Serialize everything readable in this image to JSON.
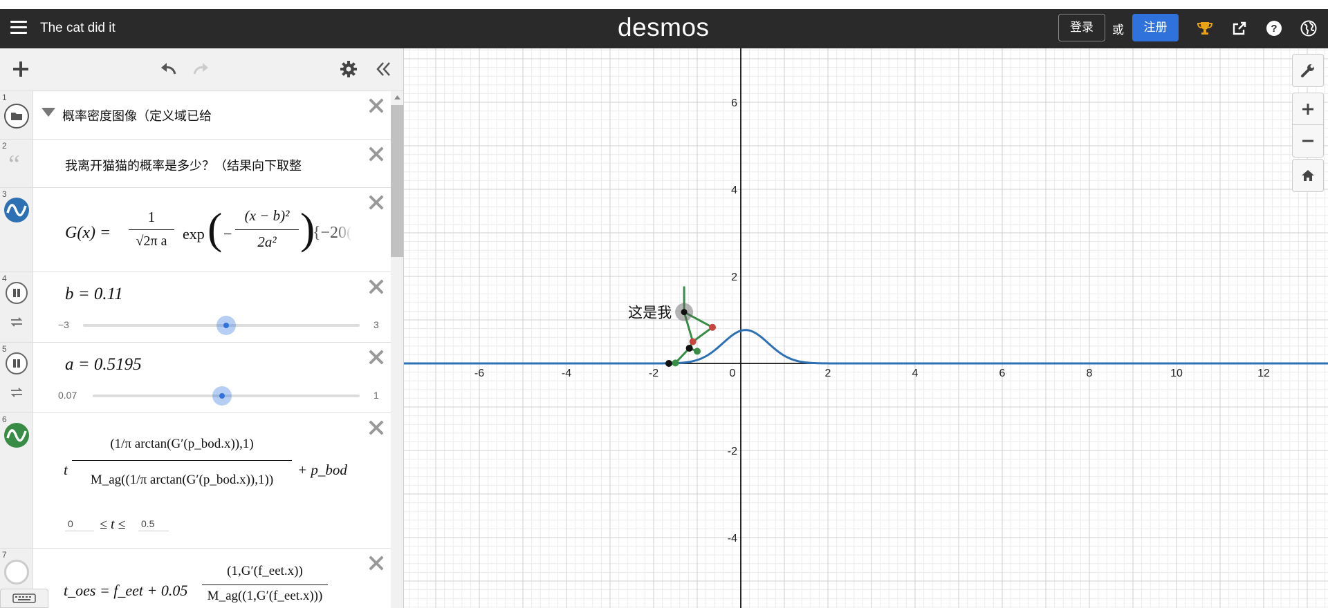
{
  "header": {
    "title": "The cat did it",
    "logo": "desmos",
    "login_label": "登录",
    "or_label": "或",
    "signup_label": "注册",
    "icons": [
      "menu-icon",
      "trophy-icon",
      "share-icon",
      "help-icon",
      "globe-icon"
    ]
  },
  "toolbar": {
    "icons": [
      "add-icon",
      "undo-icon",
      "redo-icon",
      "settings-icon",
      "collapse-icon"
    ]
  },
  "expressions": [
    {
      "num": "1",
      "type": "folder",
      "text": "概率密度图像（定义域已给"
    },
    {
      "num": "2",
      "type": "note",
      "text": "我离开猫猫的概率是多少？（结果向下取整"
    },
    {
      "num": "3",
      "type": "expression",
      "color": "#2d70b3",
      "lhs": "G(x) =",
      "frac_num": "1",
      "frac_den": "√2π a",
      "exp_label": "exp",
      "exp_num": "(x − b)²",
      "exp_den": "2a²",
      "tail": "{−20("
    },
    {
      "num": "4",
      "type": "slider",
      "lhs": "b = 0.11",
      "min": "−3",
      "max": "3",
      "value": 0.11,
      "range": [
        -3,
        3
      ]
    },
    {
      "num": "5",
      "type": "slider",
      "lhs": "a = 0.5195",
      "min": "0.07",
      "max": "1",
      "value": 0.5195,
      "range": [
        0.07,
        1
      ]
    },
    {
      "num": "6",
      "type": "parametric",
      "color": "#388c46",
      "t": "t",
      "num_expr": "(1/π arctan(G′(p_bod.x)),1)",
      "den_expr": "M_ag((1/π arctan(G′(p_bod.x)),1))",
      "plus": "+ p_bod",
      "lower": "0",
      "mid": "≤ t ≤",
      "upper": "0.5"
    },
    {
      "num": "7",
      "type": "expression",
      "lhs": "t_oes = f_eet + 0.05",
      "frac_num": "(1,G′(f_eet.x))",
      "frac_den": "M_ag((1,G′(f_eet.x)))"
    }
  ],
  "graph": {
    "x_ticks": [
      "-6",
      "-4",
      "-2",
      "0",
      "2",
      "4",
      "6",
      "8",
      "10",
      "12"
    ],
    "y_ticks": [
      "6",
      "4",
      "2",
      "-2",
      "-4"
    ],
    "point_label": "这是我",
    "curve_color": "#2d70b3",
    "stick_color": "#388c46",
    "point_red": "#c74440",
    "buttons": [
      "wrench-icon",
      "zoom-in-icon",
      "zoom-out-icon",
      "home-icon"
    ]
  }
}
